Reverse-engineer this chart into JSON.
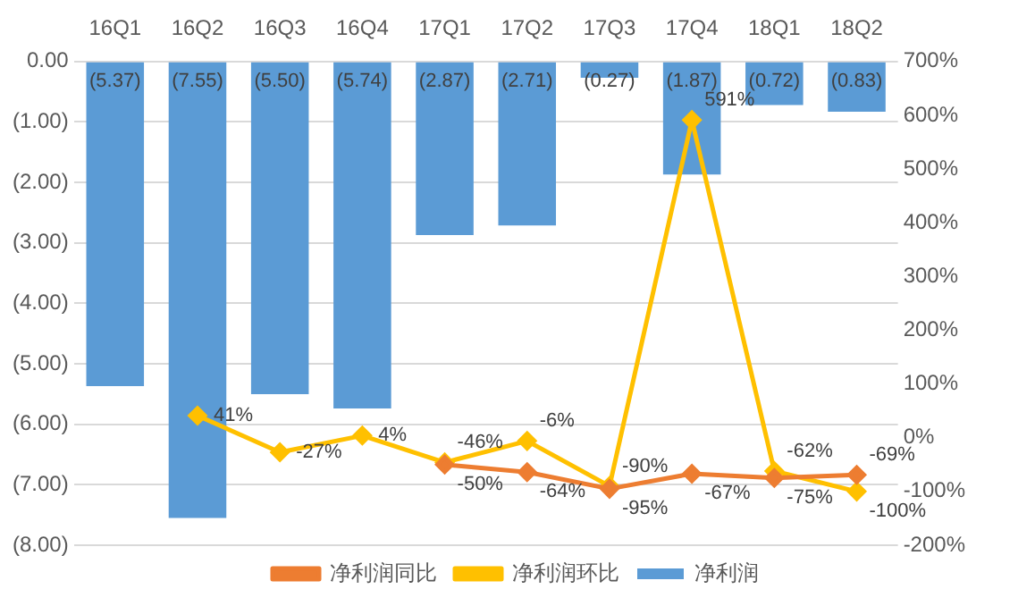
{
  "chart_data": {
    "type": "bar",
    "categories": [
      "16Q1",
      "16Q2",
      "16Q3",
      "16Q4",
      "17Q1",
      "17Q2",
      "17Q3",
      "17Q4",
      "18Q1",
      "18Q2"
    ],
    "series": [
      {
        "name": "净利润",
        "color": "#5b9bd5",
        "values": [
          -5.37,
          -7.55,
          -5.5,
          -5.74,
          -2.87,
          -2.71,
          -0.27,
          -1.87,
          -0.72,
          -0.83
        ],
        "value_labels": [
          "(5.37)",
          "(7.55)",
          "(5.50)",
          "(5.74)",
          "(2.87)",
          "(2.71)",
          "(0.27)",
          "(1.87)",
          "(0.72)",
          "(0.83)"
        ]
      },
      {
        "name": "净利润同比",
        "type": "line",
        "axis": "y2",
        "color": "#ed7d31",
        "marker": "diamond",
        "values": [
          null,
          null,
          null,
          null,
          -50,
          -64,
          -95,
          -67,
          -75,
          -69
        ],
        "value_labels": [
          null,
          null,
          null,
          null,
          "-50%",
          "-64%",
          "-95%",
          "-67%",
          "-75%",
          "-69%"
        ]
      },
      {
        "name": "净利润环比",
        "type": "line",
        "axis": "y2",
        "color": "#ffc000",
        "marker": "diamond",
        "values": [
          null,
          41,
          -27,
          4,
          -46,
          -6,
          -90,
          591,
          -62,
          -100
        ],
        "value_labels": [
          null,
          "41%",
          "-27%",
          "4%",
          "-46%",
          "-6%",
          "-90%",
          "591%",
          "-62%",
          "-100%"
        ]
      }
    ],
    "ylim": [
      -8,
      0
    ],
    "yticks": [
      {
        "value": 0,
        "label": "0.00"
      },
      {
        "value": -1,
        "label": "(1.00)"
      },
      {
        "value": -2,
        "label": "(2.00)"
      },
      {
        "value": -3,
        "label": "(3.00)"
      },
      {
        "value": -4,
        "label": "(4.00)"
      },
      {
        "value": -5,
        "label": "(5.00)"
      },
      {
        "value": -6,
        "label": "(6.00)"
      },
      {
        "value": -7,
        "label": "(7.00)"
      },
      {
        "value": -8,
        "label": "(8.00)"
      }
    ],
    "y2lim": [
      -200,
      700
    ],
    "y2ticks": [
      {
        "value": 700,
        "label": "700%"
      },
      {
        "value": 600,
        "label": "600%"
      },
      {
        "value": 500,
        "label": "500%"
      },
      {
        "value": 400,
        "label": "400%"
      },
      {
        "value": 300,
        "label": "300%"
      },
      {
        "value": 200,
        "label": "200%"
      },
      {
        "value": 100,
        "label": "100%"
      },
      {
        "value": 0,
        "label": "0%"
      },
      {
        "value": -100,
        "label": "-100%"
      },
      {
        "value": -200,
        "label": "-200%"
      }
    ],
    "grid": "y",
    "legend": "bottom"
  }
}
